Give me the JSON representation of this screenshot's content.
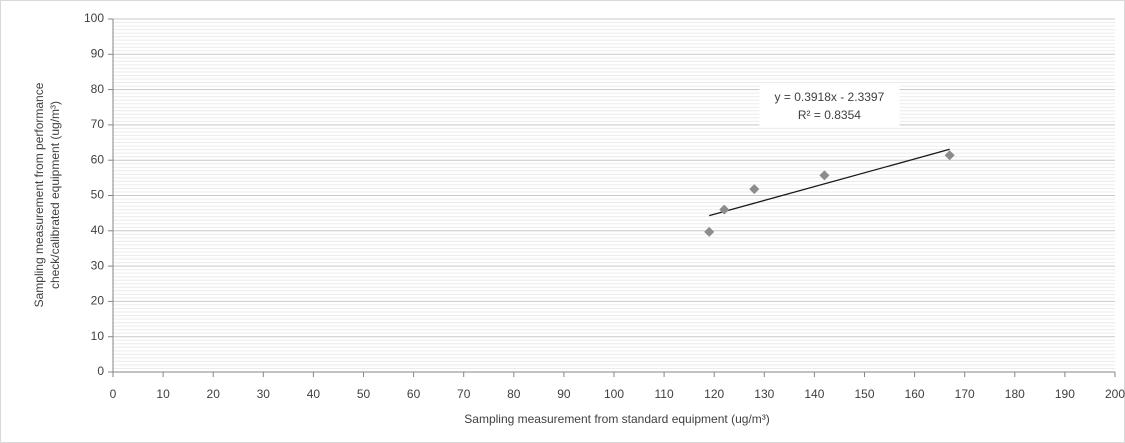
{
  "chart_data": {
    "type": "scatter",
    "x_label": "Sampling measurement from standard equipment  (ug/m³)",
    "y_label": [
      "Sampling measurement from performance",
      "check/calibrated equipment (ug/m³)"
    ],
    "series": [
      {
        "color": "#8c8c8c",
        "x": [
          119,
          122,
          128,
          142,
          167
        ],
        "values": [
          39.7,
          46,
          51.8,
          55.7,
          61.4
        ]
      }
    ],
    "trendline": {
      "slope": 0.3918,
      "intercept": -2.3397,
      "color": "#1a1a1a",
      "equation": "y = 0.3918x - 2.3397",
      "r2": "R² = 0.8354"
    },
    "xlim": [
      0,
      200
    ],
    "xticks": [
      0,
      10,
      20,
      30,
      40,
      50,
      60,
      70,
      80,
      90,
      100,
      110,
      120,
      130,
      140,
      150,
      160,
      170,
      180,
      190,
      200
    ],
    "ylim": [
      0,
      100
    ],
    "yticks": [
      0,
      10,
      20,
      30,
      40,
      50,
      60,
      70,
      80,
      90,
      100
    ],
    "grid": true,
    "minor_grid": true
  }
}
